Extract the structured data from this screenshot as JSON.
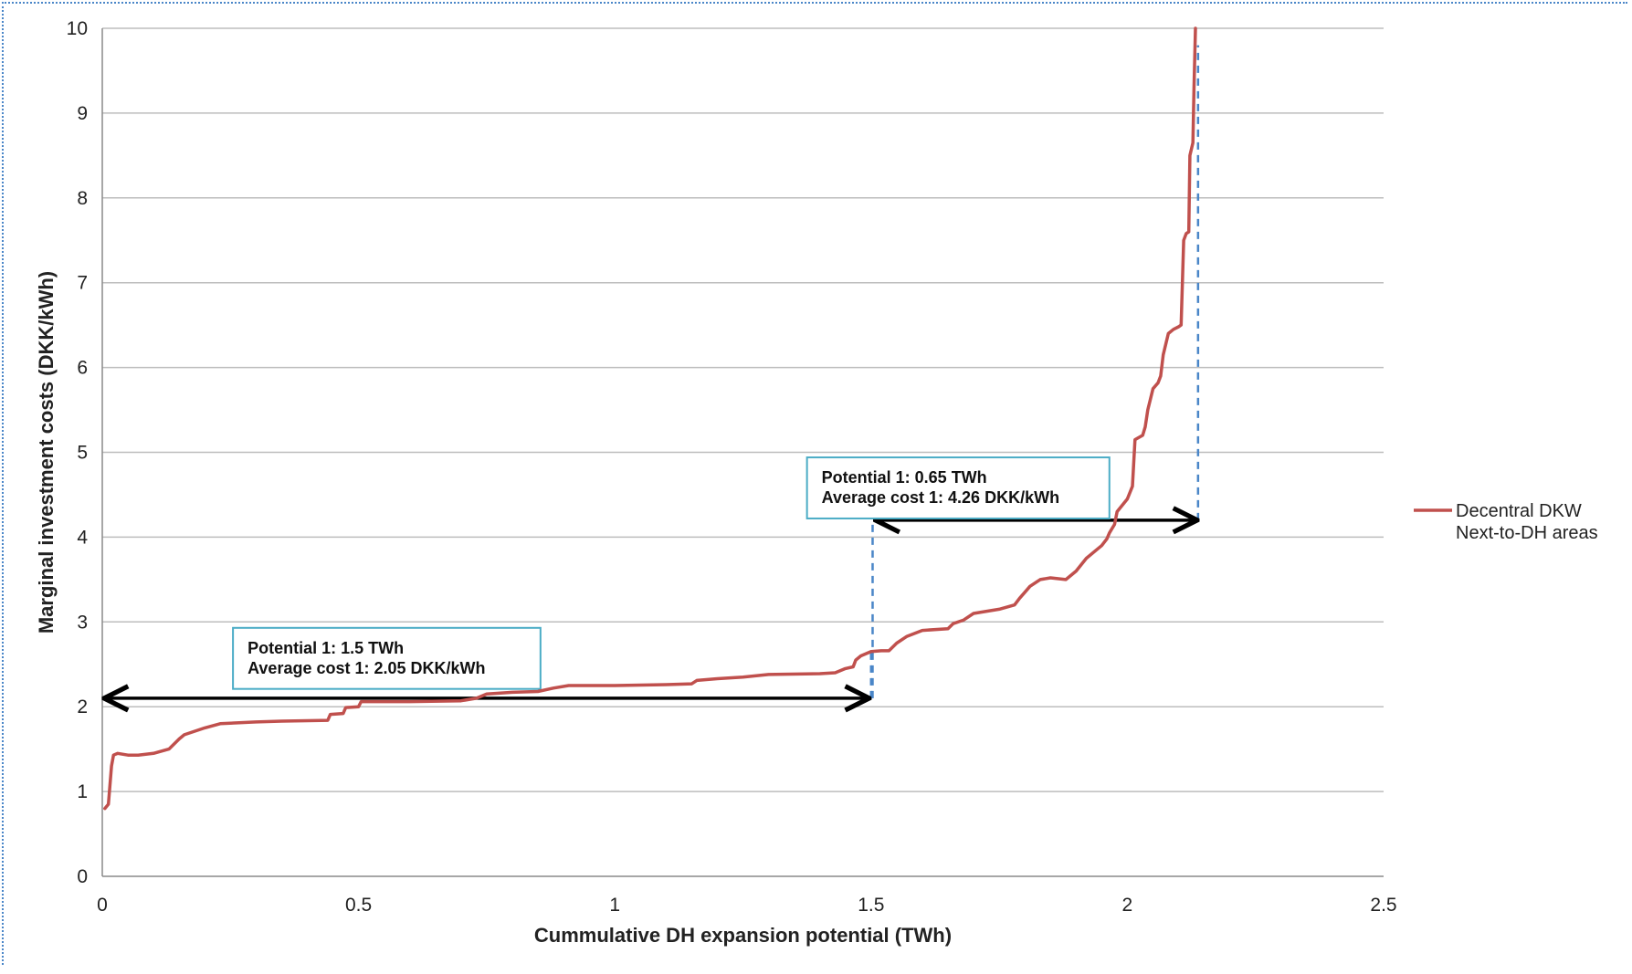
{
  "chart_data": {
    "type": "line",
    "title": "",
    "xlabel": "Cummulative DH expansion potential (TWh)",
    "ylabel": "Marginal investment costs (DKK/kWh)",
    "xlim": [
      0,
      2.5
    ],
    "ylim": [
      0,
      10
    ],
    "x_ticks": [
      "0",
      "0.5",
      "1",
      "1.5",
      "2",
      "2.5"
    ],
    "y_ticks": [
      "0",
      "1",
      "2",
      "3",
      "4",
      "5",
      "6",
      "7",
      "8",
      "9",
      "10"
    ],
    "grid": true,
    "legend_position": "right",
    "series": [
      {
        "name": "Decentral DKW Next-to-DH areas",
        "legend_lines": [
          "Decentral DKW",
          "Next-to-DH areas"
        ],
        "color": "#c0504d",
        "x": [
          0.005,
          0.012,
          0.018,
          0.022,
          0.03,
          0.05,
          0.07,
          0.1,
          0.13,
          0.15,
          0.16,
          0.2,
          0.23,
          0.3,
          0.35,
          0.44,
          0.445,
          0.47,
          0.475,
          0.5,
          0.505,
          0.6,
          0.7,
          0.73,
          0.75,
          0.8,
          0.85,
          0.88,
          0.91,
          1.0,
          1.1,
          1.15,
          1.16,
          1.2,
          1.25,
          1.3,
          1.4,
          1.43,
          1.45,
          1.465,
          1.47,
          1.48,
          1.5,
          1.52,
          1.535,
          1.55,
          1.57,
          1.6,
          1.65,
          1.66,
          1.68,
          1.7,
          1.75,
          1.78,
          1.79,
          1.8,
          1.81,
          1.83,
          1.85,
          1.88,
          1.9,
          1.92,
          1.94,
          1.95,
          1.96,
          1.965,
          1.97,
          1.975,
          1.98,
          2.0,
          2.01,
          2.015,
          2.03,
          2.035,
          2.04,
          2.05,
          2.06,
          2.065,
          2.07,
          2.08,
          2.09,
          2.1,
          2.105,
          2.11,
          2.115,
          2.12,
          2.122,
          2.128,
          2.13,
          2.133
        ],
        "values": [
          0.8,
          0.85,
          1.3,
          1.43,
          1.45,
          1.43,
          1.43,
          1.45,
          1.5,
          1.62,
          1.67,
          1.75,
          1.8,
          1.82,
          1.83,
          1.84,
          1.91,
          1.92,
          1.99,
          2.0,
          2.06,
          2.06,
          2.07,
          2.1,
          2.15,
          2.17,
          2.18,
          2.22,
          2.25,
          2.25,
          2.26,
          2.27,
          2.31,
          2.33,
          2.35,
          2.38,
          2.39,
          2.4,
          2.45,
          2.47,
          2.55,
          2.6,
          2.65,
          2.66,
          2.66,
          2.75,
          2.83,
          2.9,
          2.92,
          2.98,
          3.02,
          3.1,
          3.15,
          3.2,
          3.28,
          3.35,
          3.42,
          3.5,
          3.52,
          3.5,
          3.6,
          3.75,
          3.85,
          3.9,
          3.98,
          4.05,
          4.1,
          4.15,
          4.3,
          4.45,
          4.6,
          5.15,
          5.2,
          5.3,
          5.5,
          5.75,
          5.82,
          5.9,
          6.15,
          6.4,
          6.45,
          6.48,
          6.5,
          7.5,
          7.58,
          7.6,
          8.5,
          8.65,
          9.3,
          10.0
        ]
      }
    ],
    "annotations": [
      {
        "lines": [
          "Potential 1: 1.5 TWh",
          "Average cost 1: 2.05 DKK/kWh"
        ],
        "arrow_x": [
          0,
          1.5
        ],
        "arrow_y": 2.1,
        "box_x": 0.255,
        "box_y_top": 2.93,
        "box_width": 0.6,
        "box_height": 0.72,
        "dashed_line": {
          "x": 1.5,
          "y_from": 2.1,
          "y_to": 2.65
        }
      },
      {
        "lines": [
          "Potential 1: 0.65 TWh",
          "Average cost 1: 4.26 DKK/kWh"
        ],
        "arrow_x": [
          1.505,
          2.14
        ],
        "arrow_y": 4.2,
        "box_x": 1.375,
        "box_y_top": 4.94,
        "box_width": 0.59,
        "box_height": 0.72,
        "dashed_line": {
          "x": 2.138,
          "y_from": 4.2,
          "y_to": 9.8
        },
        "dashed_line_2": {
          "x": 1.503,
          "y_from": 2.1,
          "y_to": 4.2
        }
      }
    ]
  }
}
